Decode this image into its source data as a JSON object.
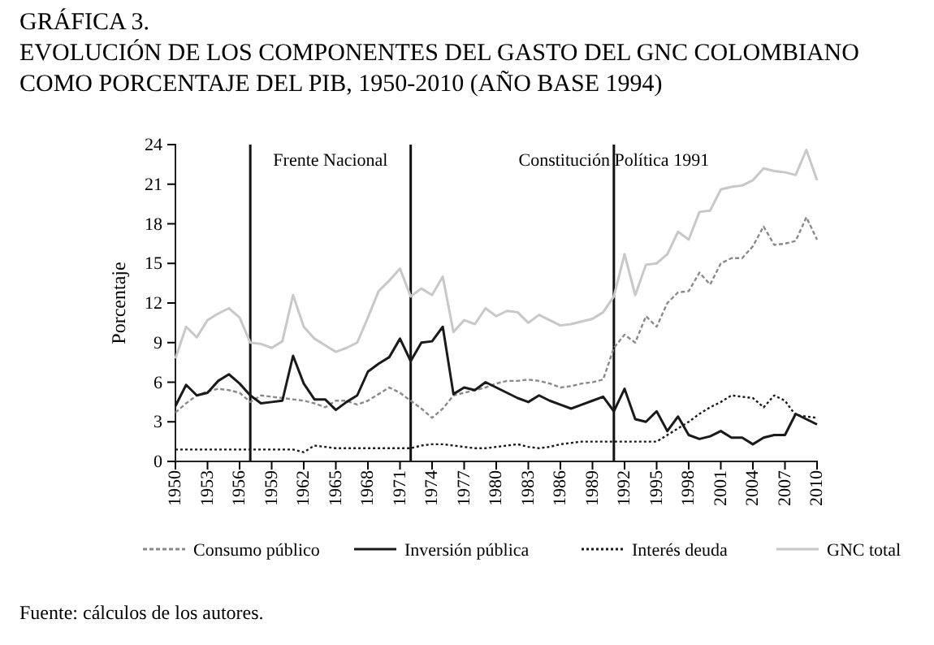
{
  "chart_data": {
    "type": "line",
    "title": "GRÁFICA 3.",
    "subtitle": "EVOLUCIÓN DE LOS COMPONENTES DEL GASTO DEL GNC COLOMBIANO COMO PORCENTAJE DEL PIB, 1950-2010 (AÑO BASE 1994)",
    "ylabel": "Porcentaje",
    "x": [
      1950,
      1951,
      1952,
      1953,
      1954,
      1955,
      1956,
      1957,
      1958,
      1959,
      1960,
      1961,
      1962,
      1963,
      1964,
      1965,
      1966,
      1967,
      1968,
      1969,
      1970,
      1971,
      1972,
      1973,
      1974,
      1975,
      1976,
      1977,
      1978,
      1979,
      1980,
      1981,
      1982,
      1983,
      1984,
      1985,
      1986,
      1987,
      1988,
      1989,
      1990,
      1991,
      1992,
      1993,
      1994,
      1995,
      1996,
      1997,
      1998,
      1999,
      2000,
      2001,
      2002,
      2003,
      2004,
      2005,
      2006,
      2007,
      2008,
      2009,
      2010
    ],
    "series": [
      {
        "name": "Consumo público",
        "color": "#8a8a8a",
        "line_style": "dashed",
        "values": [
          3.7,
          4.4,
          5.0,
          5.3,
          5.5,
          5.4,
          5.2,
          4.5,
          5.0,
          4.9,
          4.8,
          4.7,
          4.6,
          4.4,
          4.1,
          4.6,
          4.6,
          4.3,
          4.6,
          5.1,
          5.6,
          5.2,
          4.6,
          4.0,
          3.3,
          4.0,
          5.0,
          5.2,
          5.4,
          5.6,
          5.9,
          6.1,
          6.1,
          6.2,
          6.1,
          5.9,
          5.6,
          5.7,
          5.9,
          6.0,
          6.2,
          8.6,
          9.6,
          9.0,
          11.0,
          10.2,
          12.0,
          12.8,
          12.9,
          14.3,
          13.4,
          15.0,
          15.4,
          15.4,
          16.3,
          17.8,
          16.4,
          16.5,
          16.7,
          18.5,
          16.8
        ]
      },
      {
        "name": "Inversión pública",
        "color": "#1a1a1a",
        "line_style": "solid",
        "values": [
          4.2,
          5.8,
          5.0,
          5.2,
          6.1,
          6.6,
          5.9,
          5.0,
          4.4,
          4.5,
          4.6,
          8.0,
          5.9,
          4.7,
          4.7,
          3.9,
          4.5,
          5.0,
          6.8,
          7.4,
          7.9,
          9.3,
          7.6,
          9.0,
          9.1,
          10.2,
          5.1,
          5.6,
          5.4,
          6.0,
          5.6,
          5.2,
          4.8,
          4.5,
          5.0,
          4.6,
          4.3,
          4.0,
          4.3,
          4.6,
          4.9,
          3.8,
          5.5,
          3.2,
          3.0,
          3.8,
          2.3,
          3.4,
          2.0,
          1.7,
          1.9,
          2.3,
          1.8,
          1.8,
          1.3,
          1.8,
          2.0,
          2.0,
          3.6,
          3.2,
          2.8
        ]
      },
      {
        "name": "Interés deuda",
        "color": "#1a1a1a",
        "line_style": "dotted",
        "values": [
          0.9,
          0.9,
          0.9,
          0.9,
          0.9,
          0.9,
          0.9,
          0.9,
          0.9,
          0.9,
          0.9,
          0.9,
          0.7,
          1.2,
          1.1,
          1.0,
          1.0,
          1.0,
          1.0,
          1.0,
          1.0,
          1.0,
          1.0,
          1.2,
          1.3,
          1.3,
          1.2,
          1.1,
          1.0,
          1.0,
          1.1,
          1.2,
          1.3,
          1.1,
          1.0,
          1.1,
          1.3,
          1.4,
          1.5,
          1.5,
          1.5,
          1.5,
          1.5,
          1.5,
          1.5,
          1.5,
          2.0,
          2.5,
          3.0,
          3.6,
          4.1,
          4.5,
          5.0,
          4.9,
          4.8,
          4.1,
          5.0,
          4.6,
          3.5,
          3.4,
          3.3
        ]
      },
      {
        "name": "GNC total",
        "color": "#c8c8c8",
        "line_style": "solid",
        "values": [
          7.8,
          10.2,
          9.4,
          10.7,
          11.2,
          11.6,
          10.9,
          9.0,
          8.9,
          8.6,
          9.1,
          12.6,
          10.2,
          9.3,
          8.8,
          8.3,
          8.6,
          9.0,
          10.9,
          12.9,
          13.7,
          14.6,
          12.5,
          13.1,
          12.6,
          14.0,
          9.8,
          10.7,
          10.4,
          11.6,
          11.0,
          11.4,
          11.3,
          10.5,
          11.1,
          10.7,
          10.3,
          10.4,
          10.6,
          10.8,
          11.3,
          12.5,
          15.7,
          12.6,
          14.9,
          15.0,
          15.7,
          17.4,
          16.8,
          18.9,
          19.0,
          20.6,
          20.8,
          20.9,
          21.3,
          22.2,
          22.0,
          21.9,
          21.7,
          23.6,
          21.3
        ]
      }
    ],
    "xlim": [
      1950,
      2010
    ],
    "xticks": [
      1950,
      1953,
      1956,
      1959,
      1962,
      1965,
      1968,
      1971,
      1974,
      1977,
      1980,
      1983,
      1986,
      1989,
      1992,
      1995,
      1998,
      2001,
      2004,
      2007,
      2010
    ],
    "ylim": [
      0,
      24
    ],
    "yticks": [
      0,
      3,
      6,
      9,
      12,
      15,
      18,
      21,
      24
    ],
    "ref_lines": [
      {
        "axis": "x",
        "value": 1957,
        "label": "Frente Nacional"
      },
      {
        "axis": "x",
        "value": 1972,
        "label": null
      },
      {
        "axis": "x",
        "value": 1991,
        "label": "Constitución Política 1991"
      }
    ],
    "legend": "bottom",
    "grid": false,
    "marker": "none",
    "annotations": [
      "Fuente: cálculos de los autores."
    ]
  }
}
